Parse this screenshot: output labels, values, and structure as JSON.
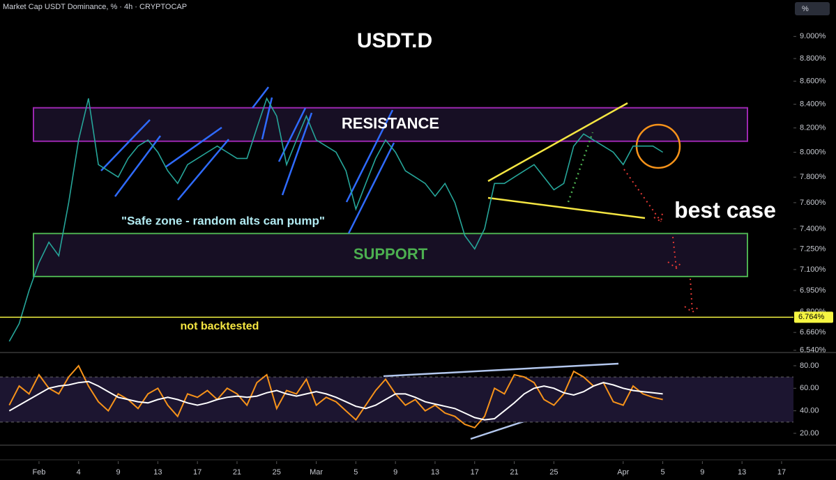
{
  "chart_data": [
    {
      "type": "line",
      "title": "USDT.D",
      "subtitle": "Market Cap USDT Dominance, % · 4h · CRYPTOCAP",
      "unit_label": "%",
      "log": true,
      "color": "#26a69a",
      "x": [
        -3,
        -2,
        -1,
        0,
        1,
        2,
        3,
        4,
        5,
        6,
        7,
        8,
        9,
        10,
        11,
        12,
        13,
        14,
        15,
        16,
        17,
        18,
        19,
        20,
        21,
        22,
        23,
        24,
        25,
        26,
        27,
        28,
        29,
        30,
        31,
        32,
        33,
        34,
        35,
        36,
        37,
        38,
        39,
        40,
        41,
        42,
        43,
        44,
        45,
        46,
        47,
        48,
        49,
        50,
        51,
        52,
        53,
        54,
        55,
        56,
        57,
        58,
        59,
        60,
        61,
        62,
        63
      ],
      "values": [
        6.6,
        6.72,
        6.95,
        7.15,
        7.3,
        7.2,
        7.6,
        8.1,
        8.45,
        7.9,
        7.85,
        7.8,
        7.95,
        8.05,
        8.1,
        8.0,
        7.85,
        7.75,
        7.9,
        7.95,
        8.0,
        8.05,
        8.0,
        7.95,
        7.95,
        8.2,
        8.45,
        8.3,
        7.9,
        8.1,
        8.3,
        8.1,
        8.05,
        8.0,
        7.85,
        7.55,
        7.75,
        7.95,
        8.1,
        8.0,
        7.85,
        7.8,
        7.75,
        7.65,
        7.75,
        7.6,
        7.35,
        7.25,
        7.4,
        7.75,
        7.75,
        7.8,
        7.85,
        7.9,
        7.8,
        7.7,
        7.75,
        8.05,
        8.15,
        8.1,
        8.05,
        8.0,
        7.9,
        8.05,
        8.05,
        8.05,
        8.0
      ],
      "xlim": [
        -3.94,
        76.2
      ],
      "ylim": [
        6.53,
        9.34
      ],
      "xticks": [
        {
          "value": 0,
          "label": "Feb"
        },
        4,
        {
          "value": 8,
          "label": "9"
        },
        {
          "value": 12,
          "label": "13"
        },
        {
          "value": 16,
          "label": "17"
        },
        {
          "value": 20,
          "label": "21"
        },
        {
          "value": 24,
          "label": "25"
        },
        {
          "value": 28,
          "label": "Mar"
        },
        {
          "value": 32,
          "label": "5"
        },
        {
          "value": 36,
          "label": "9"
        },
        {
          "value": 40,
          "label": "13"
        },
        {
          "value": 44,
          "label": "17"
        },
        {
          "value": 48,
          "label": "21"
        },
        {
          "value": 52,
          "label": "25"
        },
        {
          "value": 59,
          "label": "Apr"
        },
        {
          "value": 63,
          "label": "5"
        },
        {
          "value": 67,
          "label": "9"
        },
        {
          "value": 71,
          "label": "13"
        },
        {
          "value": 75,
          "label": "17"
        }
      ],
      "yticks": [
        {
          "value": 9.0,
          "label": "9.000%"
        },
        {
          "value": 8.8,
          "label": "8.800%"
        },
        {
          "value": 8.6,
          "label": "8.600%"
        },
        {
          "value": 8.4,
          "label": "8.400%"
        },
        {
          "value": 8.2,
          "label": "8.200%"
        },
        {
          "value": 8.0,
          "label": "8.000%"
        },
        {
          "value": 7.8,
          "label": "7.800%"
        },
        {
          "value": 7.6,
          "label": "7.600%"
        },
        {
          "value": 7.4,
          "label": "7.400%"
        },
        {
          "value": 7.25,
          "label": "7.250%"
        },
        {
          "value": 7.1,
          "label": "7.100%"
        },
        {
          "value": 6.95,
          "label": "6.950%"
        },
        {
          "value": 6.8,
          "label": "6.800%"
        },
        {
          "value": 6.66,
          "label": "6.660%"
        },
        {
          "value": 6.54,
          "label": "6.540%"
        }
      ],
      "hline": {
        "value": 6.764,
        "label": "6.764%",
        "color": "#f5f542"
      },
      "zones": [
        {
          "label": "RESISTANCE",
          "range": [
            8.09,
            8.37
          ],
          "color": "#9c27b0"
        },
        {
          "label": "SUPPORT",
          "range": [
            7.05,
            7.365
          ],
          "color": "#4caf50"
        }
      ],
      "notes": [
        "\"Safe zone - random alts can pump\"",
        "best case",
        "not backtested"
      ]
    },
    {
      "type": "line",
      "x": [
        -3,
        -2,
        -1,
        0,
        1,
        2,
        3,
        4,
        5,
        6,
        7,
        8,
        9,
        10,
        11,
        12,
        13,
        14,
        15,
        16,
        17,
        18,
        19,
        20,
        21,
        22,
        23,
        24,
        25,
        26,
        27,
        28,
        29,
        30,
        31,
        32,
        33,
        34,
        35,
        36,
        37,
        38,
        39,
        40,
        41,
        42,
        43,
        44,
        45,
        46,
        47,
        48,
        49,
        50,
        51,
        52,
        53,
        54,
        55,
        56,
        57,
        58,
        59,
        60,
        61,
        62,
        63
      ],
      "series": [
        {
          "color": "#f7931a",
          "values": [
            45,
            62,
            55,
            72,
            60,
            55,
            70,
            80,
            62,
            48,
            40,
            55,
            50,
            42,
            55,
            60,
            45,
            35,
            55,
            52,
            58,
            50,
            60,
            55,
            45,
            65,
            72,
            42,
            58,
            55,
            68,
            45,
            52,
            48,
            40,
            32,
            45,
            58,
            68,
            55,
            45,
            50,
            40,
            45,
            38,
            35,
            28,
            25,
            35,
            60,
            55,
            72,
            70,
            65,
            50,
            45,
            55,
            75,
            70,
            62,
            65,
            48,
            45,
            62,
            55,
            52,
            50
          ]
        },
        {
          "color": "#ffffff",
          "values": [
            40,
            45,
            50,
            55,
            60,
            62,
            63,
            65,
            66,
            62,
            57,
            52,
            50,
            48,
            47,
            50,
            52,
            50,
            47,
            45,
            47,
            50,
            52,
            53,
            52,
            53,
            56,
            58,
            55,
            53,
            55,
            57,
            55,
            52,
            48,
            44,
            42,
            45,
            50,
            55,
            55,
            52,
            48,
            46,
            44,
            42,
            38,
            34,
            32,
            33,
            40,
            47,
            55,
            60,
            62,
            60,
            56,
            54,
            57,
            62,
            65,
            63,
            60,
            58,
            57,
            56,
            55
          ]
        }
      ],
      "xlim": [
        -3.94,
        76.2
      ],
      "ylim": [
        10.1,
        90.5
      ],
      "band": [
        30,
        70
      ],
      "yticks": [
        {
          "value": 80,
          "label": "80.00"
        },
        {
          "value": 60,
          "label": "60.00"
        },
        {
          "value": 40,
          "label": "40.00"
        },
        {
          "value": 20,
          "label": "20.00"
        }
      ]
    }
  ]
}
